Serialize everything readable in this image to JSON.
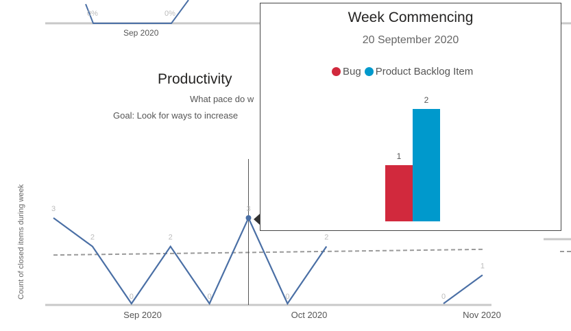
{
  "top_chart": {
    "data_labels": [
      "0%",
      "0%"
    ],
    "x_tick": "Sep 2020"
  },
  "main_chart": {
    "title": "Productivity",
    "subtitle": "What pace do w",
    "goal": "Goal: Look for ways to increase",
    "y_axis_label": "Count of closed items during week",
    "x_ticks": [
      "Sep 2020",
      "Oct 2020",
      "Nov 2020"
    ],
    "line_color": "#4A6FA5",
    "trend_color": "#999999"
  },
  "chart_data": {
    "type": "line",
    "x": [
      1,
      2,
      3,
      4,
      5,
      6,
      7,
      8,
      9,
      10,
      11,
      12
    ],
    "series": [
      {
        "values": [
          3,
          2,
          0,
          2,
          0,
          3,
          0,
          2,
          null,
          null,
          0,
          1
        ]
      }
    ],
    "data_labels": [
      "3",
      "2",
      "0",
      "2",
      "0",
      "3",
      "0",
      "2",
      "",
      "",
      "0",
      "1"
    ],
    "ylabel": "Count of closed items during week",
    "xticks": [
      "Sep 2020",
      "Oct 2020",
      "Nov 2020"
    ],
    "ylim": [
      0,
      3
    ],
    "trendline": {
      "start": 1.7,
      "end": 1.9
    }
  },
  "tooltip": {
    "title": "Week Commencing",
    "date": "20 September 2020",
    "legend": [
      {
        "label": "Bug",
        "color": "#D1293D"
      },
      {
        "label": "Product Backlog Item",
        "color": "#0099CC"
      }
    ],
    "bars": [
      {
        "label": "1",
        "value": 1,
        "color": "#D1293D"
      },
      {
        "label": "2",
        "value": 2,
        "color": "#0099CC"
      }
    ]
  }
}
